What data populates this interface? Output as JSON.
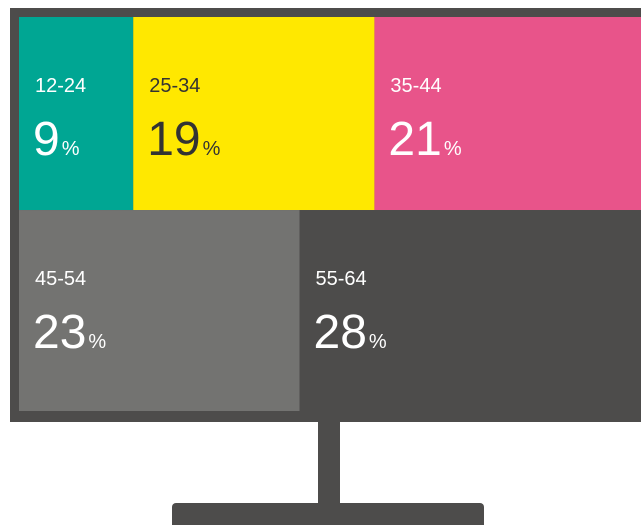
{
  "chart_data": {
    "type": "treemap",
    "categories": [
      "12-24",
      "25-34",
      "35-44",
      "45-54",
      "55-64"
    ],
    "values": [
      9,
      19,
      21,
      23,
      28
    ],
    "unit": "%",
    "colors": [
      "#00a693",
      "#ffe800",
      "#e8548a",
      "#737371",
      "#4d4c4b"
    ],
    "text_colors": [
      "#ffffff",
      "#333333",
      "#ffffff",
      "#ffffff",
      "#ffffff"
    ]
  }
}
